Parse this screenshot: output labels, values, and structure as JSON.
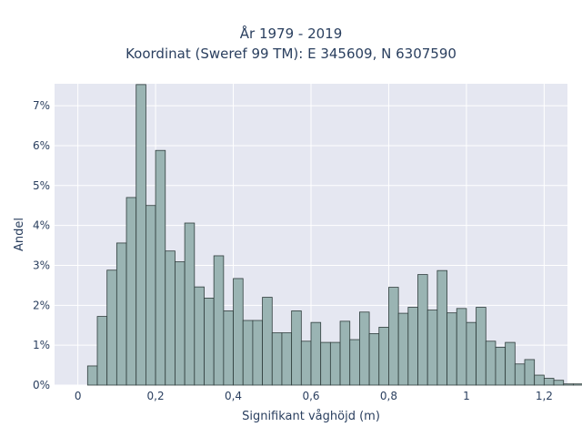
{
  "chart_data": {
    "type": "bar",
    "title": "År 1979 - 2019",
    "subtitle": "Koordinat (Sweref 99 TM): E 345609, N 6307590",
    "xlabel": "Signifikant våghöjd (m)",
    "ylabel": "Andel",
    "bin_width": 0.025,
    "bin_start": 0.0,
    "xlim": [
      -0.06,
      1.26
    ],
    "ylim": [
      0,
      0.0755
    ],
    "xticks": [
      0,
      0.2,
      0.4,
      0.6,
      0.8,
      1.0,
      1.2
    ],
    "xtick_labels": [
      "0",
      "0,2",
      "0,4",
      "0,6",
      "0,8",
      "1",
      "1,2"
    ],
    "yticks": [
      0,
      0.01,
      0.02,
      0.03,
      0.04,
      0.05,
      0.06,
      0.07
    ],
    "ytick_labels": [
      "0%",
      "1%",
      "2%",
      "3%",
      "4%",
      "5%",
      "6%",
      "7%"
    ],
    "grid": true,
    "legend": "none",
    "colors": {
      "plot_bg": "#e5e7f1",
      "grid": "#ffffff",
      "bar_fill": "#9ab4b3",
      "bar_edge": "#2f3d3c"
    },
    "values": [
      0.0,
      0.0048,
      0.0172,
      0.0288,
      0.0356,
      0.047,
      0.0753,
      0.045,
      0.0588,
      0.0336,
      0.0309,
      0.0406,
      0.0246,
      0.0218,
      0.0324,
      0.0186,
      0.0267,
      0.0162,
      0.0162,
      0.022,
      0.0131,
      0.0131,
      0.0186,
      0.011,
      0.0157,
      0.0107,
      0.0107,
      0.016,
      0.0114,
      0.0183,
      0.0129,
      0.0145,
      0.0245,
      0.018,
      0.0195,
      0.0277,
      0.0188,
      0.0287,
      0.0181,
      0.0192,
      0.0157,
      0.0195,
      0.011,
      0.0095,
      0.0107,
      0.0053,
      0.0064,
      0.0025,
      0.0017,
      0.0012,
      0.0003,
      0.0003
    ]
  }
}
